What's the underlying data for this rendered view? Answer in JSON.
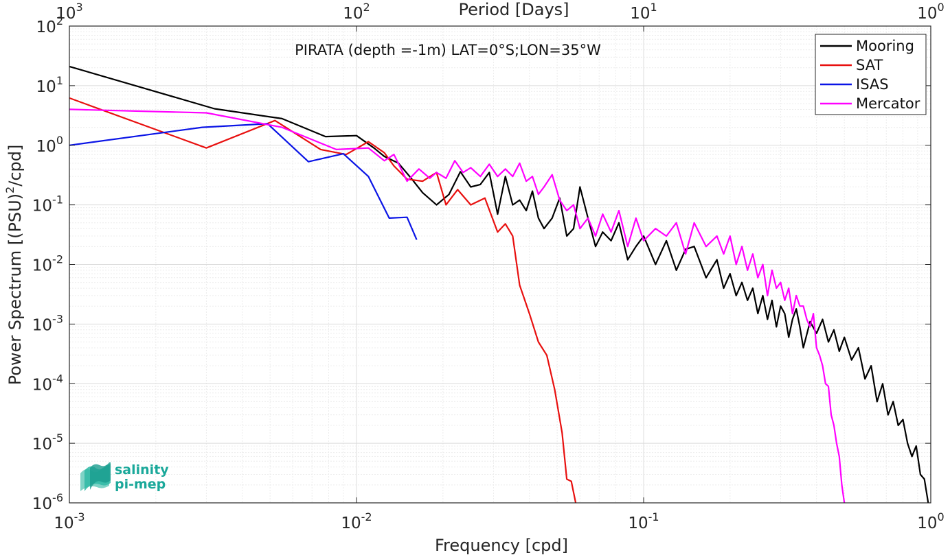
{
  "chart_data": {
    "type": "line",
    "title": "PIRATA (depth =-1m) LAT=0°S;LON=35°W",
    "xlabel": "Frequency [cpd]",
    "ylabel": "Power Spectrum [(PSU)",
    "ylabel_sup": "2",
    "ylabel_tail": "/cpd]",
    "top_xlabel": "Period [Days]",
    "xscale": "log",
    "yscale": "log",
    "xlim": [
      0.001,
      1
    ],
    "ylim": [
      1e-06,
      100
    ],
    "grid": true,
    "legend_position": "top-right",
    "x_ticks": [
      {
        "value": 0.001,
        "base": "10",
        "exp": "-3"
      },
      {
        "value": 0.01,
        "base": "10",
        "exp": "-2"
      },
      {
        "value": 0.1,
        "base": "10",
        "exp": "-1"
      },
      {
        "value": 1,
        "base": "10",
        "exp": "0"
      }
    ],
    "top_ticks": [
      {
        "value": 0.001,
        "base": "10",
        "exp": "3"
      },
      {
        "value": 0.01,
        "base": "10",
        "exp": "2"
      },
      {
        "value": 0.1,
        "base": "10",
        "exp": "1"
      },
      {
        "value": 1,
        "base": "10",
        "exp": "0"
      }
    ],
    "y_ticks": [
      {
        "value": 100,
        "base": "10",
        "exp": "2"
      },
      {
        "value": 10,
        "base": "10",
        "exp": "1"
      },
      {
        "value": 1,
        "base": "10",
        "exp": "0"
      },
      {
        "value": 0.1,
        "base": "10",
        "exp": "-1"
      },
      {
        "value": 0.01,
        "base": "10",
        "exp": "-2"
      },
      {
        "value": 0.001,
        "base": "10",
        "exp": "-3"
      },
      {
        "value": 0.0001,
        "base": "10",
        "exp": "-4"
      },
      {
        "value": 1e-05,
        "base": "10",
        "exp": "-5"
      },
      {
        "value": 1e-06,
        "base": "10",
        "exp": "-6"
      }
    ],
    "series": [
      {
        "name": "Mooring",
        "color": "#000000",
        "x": [
          0.001,
          0.0032,
          0.0055,
          0.0078,
          0.01,
          0.0115,
          0.0125,
          0.014,
          0.0155,
          0.017,
          0.019,
          0.021,
          0.023,
          0.025,
          0.027,
          0.029,
          0.031,
          0.033,
          0.035,
          0.037,
          0.039,
          0.041,
          0.043,
          0.045,
          0.048,
          0.051,
          0.054,
          0.057,
          0.06,
          0.064,
          0.068,
          0.072,
          0.077,
          0.082,
          0.088,
          0.094,
          0.1,
          0.11,
          0.12,
          0.13,
          0.14,
          0.15,
          0.165,
          0.18,
          0.19,
          0.2,
          0.21,
          0.22,
          0.23,
          0.24,
          0.25,
          0.26,
          0.27,
          0.28,
          0.29,
          0.3,
          0.31,
          0.32,
          0.33,
          0.34,
          0.35,
          0.36,
          0.38,
          0.4,
          0.42,
          0.44,
          0.46,
          0.48,
          0.5,
          0.53,
          0.56,
          0.59,
          0.62,
          0.65,
          0.68,
          0.71,
          0.74,
          0.77,
          0.8,
          0.83,
          0.86,
          0.89,
          0.92,
          0.95,
          0.98
        ],
        "y": [
          21,
          4.1,
          2.8,
          1.4,
          1.45,
          0.9,
          0.65,
          0.5,
          0.28,
          0.16,
          0.1,
          0.15,
          0.36,
          0.2,
          0.22,
          0.35,
          0.07,
          0.3,
          0.1,
          0.12,
          0.08,
          0.17,
          0.06,
          0.04,
          0.06,
          0.13,
          0.03,
          0.04,
          0.2,
          0.06,
          0.02,
          0.035,
          0.025,
          0.05,
          0.012,
          0.02,
          0.03,
          0.01,
          0.025,
          0.008,
          0.018,
          0.02,
          0.006,
          0.012,
          0.004,
          0.007,
          0.003,
          0.005,
          0.0025,
          0.004,
          0.0015,
          0.003,
          0.0012,
          0.0025,
          0.0009,
          0.002,
          0.0015,
          0.0006,
          0.0012,
          0.0018,
          0.0009,
          0.0004,
          0.0011,
          0.0007,
          0.0012,
          0.0005,
          0.0008,
          0.00035,
          0.0006,
          0.00025,
          0.0004,
          0.00012,
          0.0002,
          5e-05,
          0.0001,
          3e-05,
          5e-05,
          2e-05,
          2.5e-05,
          1e-05,
          6e-06,
          9e-06,
          3e-06,
          2.5e-06,
          1e-06
        ]
      },
      {
        "name": "SAT",
        "color": "#e8100f",
        "x": [
          0.001,
          0.003,
          0.0052,
          0.0075,
          0.0092,
          0.011,
          0.0125,
          0.0135,
          0.015,
          0.017,
          0.019,
          0.0205,
          0.0225,
          0.025,
          0.028,
          0.031,
          0.033,
          0.035,
          0.037,
          0.04,
          0.043,
          0.046,
          0.049,
          0.052,
          0.054,
          0.056,
          0.058
        ],
        "y": [
          6.2,
          0.9,
          2.6,
          0.85,
          0.7,
          1.15,
          0.75,
          0.45,
          0.27,
          0.25,
          0.35,
          0.1,
          0.18,
          0.1,
          0.13,
          0.035,
          0.048,
          0.03,
          0.0045,
          0.0015,
          0.0005,
          0.0003,
          8e-05,
          1.5e-05,
          2.5e-06,
          2.3e-06,
          1e-06
        ]
      },
      {
        "name": "ISAS",
        "color": "#0a14e6",
        "x": [
          0.001,
          0.0029,
          0.0049,
          0.0068,
          0.009,
          0.011,
          0.013,
          0.015,
          0.0162
        ],
        "y": [
          1.0,
          2.0,
          2.3,
          0.53,
          0.72,
          0.3,
          0.06,
          0.062,
          0.026
        ]
      },
      {
        "name": "Mercator",
        "color": "#ff00ff",
        "x": [
          0.001,
          0.003,
          0.0055,
          0.0085,
          0.011,
          0.0125,
          0.0135,
          0.015,
          0.0165,
          0.018,
          0.019,
          0.0205,
          0.022,
          0.0235,
          0.025,
          0.027,
          0.029,
          0.031,
          0.033,
          0.035,
          0.037,
          0.039,
          0.041,
          0.043,
          0.045,
          0.048,
          0.051,
          0.054,
          0.057,
          0.06,
          0.064,
          0.068,
          0.072,
          0.077,
          0.082,
          0.088,
          0.094,
          0.1,
          0.11,
          0.12,
          0.13,
          0.14,
          0.15,
          0.165,
          0.18,
          0.19,
          0.2,
          0.21,
          0.22,
          0.23,
          0.24,
          0.25,
          0.26,
          0.27,
          0.28,
          0.29,
          0.3,
          0.31,
          0.32,
          0.33,
          0.34,
          0.35,
          0.36,
          0.37,
          0.38,
          0.39,
          0.4,
          0.41,
          0.42,
          0.43,
          0.44,
          0.45,
          0.46,
          0.47,
          0.48,
          0.49,
          0.5
        ],
        "y": [
          4.0,
          3.5,
          2.0,
          0.85,
          0.9,
          0.55,
          0.7,
          0.25,
          0.4,
          0.28,
          0.35,
          0.28,
          0.55,
          0.35,
          0.42,
          0.3,
          0.48,
          0.3,
          0.4,
          0.3,
          0.5,
          0.25,
          0.3,
          0.15,
          0.2,
          0.32,
          0.12,
          0.08,
          0.1,
          0.04,
          0.06,
          0.03,
          0.07,
          0.035,
          0.08,
          0.02,
          0.06,
          0.025,
          0.04,
          0.03,
          0.05,
          0.015,
          0.05,
          0.02,
          0.03,
          0.015,
          0.03,
          0.01,
          0.02,
          0.008,
          0.015,
          0.006,
          0.01,
          0.003,
          0.008,
          0.004,
          0.005,
          0.0025,
          0.004,
          0.0015,
          0.003,
          0.002,
          0.002,
          0.0012,
          0.0009,
          0.0015,
          0.0004,
          0.0003,
          0.0002,
          0.0001,
          9e-05,
          3e-05,
          2e-05,
          1e-05,
          6e-06,
          2e-06,
          1e-06
        ]
      }
    ]
  },
  "logo": {
    "line1": "salinity",
    "line2": "pi-mep"
  }
}
